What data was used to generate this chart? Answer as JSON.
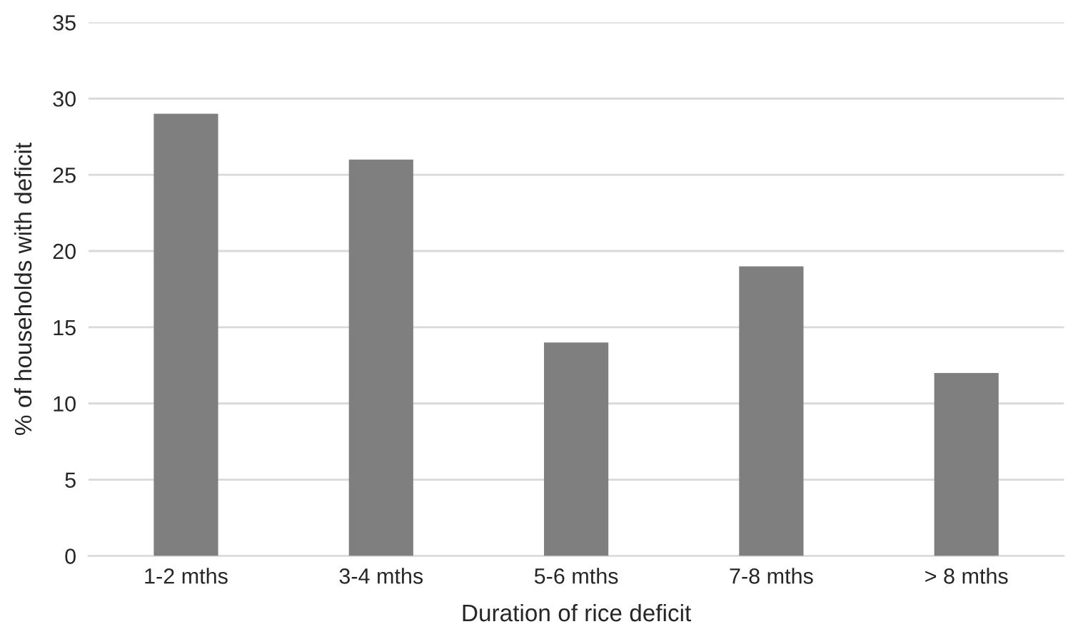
{
  "chart_data": {
    "type": "bar",
    "xlabel": "Duration of rice deficit",
    "ylabel": "% of households with deficit",
    "categories": [
      "1-2 mths",
      "3-4 mths",
      "5-6 mths",
      "7-8 mths",
      "> 8 mths"
    ],
    "values": [
      29,
      26,
      14,
      19,
      12
    ],
    "color": "#7f7f80",
    "ylim": [
      0,
      35
    ],
    "yticks": [
      0,
      5,
      10,
      15,
      20,
      25,
      30,
      35
    ],
    "grid": "y",
    "legend": false
  }
}
